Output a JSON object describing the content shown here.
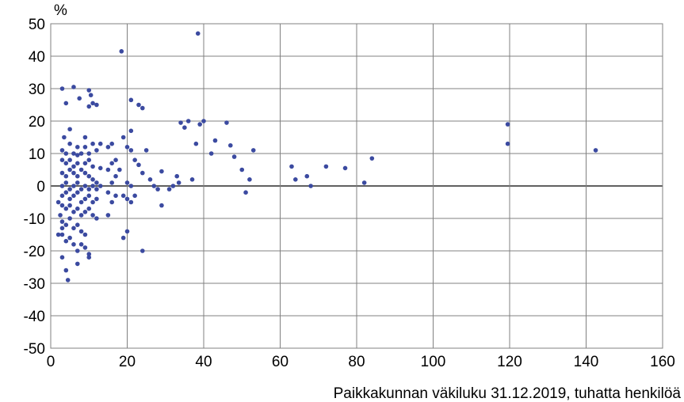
{
  "chart_data": {
    "type": "scatter",
    "title": "",
    "ylabel": "%",
    "xlabel": "Paikkakunnan väkiluku 31.12.2019, tuhatta henkilöä",
    "xlim": [
      0,
      160
    ],
    "ylim": [
      -50,
      50
    ],
    "x_ticks": [
      0,
      20,
      40,
      60,
      80,
      100,
      120,
      140,
      160
    ],
    "y_ticks": [
      50,
      40,
      30,
      20,
      10,
      0,
      -10,
      -20,
      -30,
      -40,
      -50
    ],
    "grid": true,
    "legend": "none",
    "marker_color": "#3b4aa0",
    "points": [
      [
        3,
        30
      ],
      [
        6,
        30.5
      ],
      [
        10,
        29.5
      ],
      [
        10.5,
        28
      ],
      [
        4,
        25.5
      ],
      [
        7.5,
        27
      ],
      [
        10,
        24.5
      ],
      [
        11,
        25.5
      ],
      [
        12,
        25
      ],
      [
        5,
        17.5
      ],
      [
        18.5,
        41.5
      ],
      [
        38.5,
        47
      ],
      [
        3.5,
        15
      ],
      [
        9,
        15
      ],
      [
        5,
        13
      ],
      [
        7,
        12
      ],
      [
        9,
        12
      ],
      [
        11,
        13
      ],
      [
        13,
        13
      ],
      [
        3,
        11
      ],
      [
        4,
        10
      ],
      [
        6,
        10
      ],
      [
        7,
        9.5
      ],
      [
        8,
        10
      ],
      [
        10,
        10
      ],
      [
        12,
        11
      ],
      [
        3,
        8
      ],
      [
        4,
        7
      ],
      [
        5,
        8
      ],
      [
        6,
        6
      ],
      [
        7,
        7
      ],
      [
        9,
        7
      ],
      [
        10,
        8
      ],
      [
        11,
        6
      ],
      [
        13,
        5.5
      ],
      [
        3,
        4
      ],
      [
        4,
        3
      ],
      [
        5,
        5
      ],
      [
        6,
        4
      ],
      [
        7,
        3
      ],
      [
        8,
        5
      ],
      [
        9,
        4
      ],
      [
        10,
        3
      ],
      [
        11,
        2
      ],
      [
        12,
        1
      ],
      [
        3,
        0
      ],
      [
        4,
        1
      ],
      [
        5,
        -1
      ],
      [
        6,
        0
      ],
      [
        7,
        1
      ],
      [
        8,
        -1
      ],
      [
        9,
        0
      ],
      [
        10,
        -1
      ],
      [
        11,
        0
      ],
      [
        12,
        -1
      ],
      [
        13,
        0
      ],
      [
        3,
        -3
      ],
      [
        4,
        -2
      ],
      [
        5,
        -4
      ],
      [
        6,
        -3
      ],
      [
        7,
        -2
      ],
      [
        8,
        -5
      ],
      [
        9,
        -4
      ],
      [
        10,
        -3
      ],
      [
        11,
        -5
      ],
      [
        12,
        -4
      ],
      [
        3,
        -6
      ],
      [
        4,
        -7
      ],
      [
        5,
        -6
      ],
      [
        6,
        -8
      ],
      [
        7,
        -7
      ],
      [
        8,
        -9
      ],
      [
        9,
        -8
      ],
      [
        10,
        -7
      ],
      [
        11,
        -9
      ],
      [
        12,
        -10
      ],
      [
        3,
        -11
      ],
      [
        4,
        -12
      ],
      [
        5,
        -10
      ],
      [
        6,
        -13
      ],
      [
        7,
        -12
      ],
      [
        8,
        -14
      ],
      [
        9,
        -15
      ],
      [
        2,
        -15
      ],
      [
        3,
        -15
      ],
      [
        4,
        -17
      ],
      [
        5,
        -16
      ],
      [
        6,
        -18
      ],
      [
        7,
        -20
      ],
      [
        8,
        -18
      ],
      [
        9,
        -19
      ],
      [
        10,
        -22
      ],
      [
        10,
        -21
      ],
      [
        3,
        -22
      ],
      [
        4,
        -26
      ],
      [
        4.5,
        -29
      ],
      [
        7,
        -24
      ],
      [
        2,
        -5
      ],
      [
        2.5,
        -9
      ],
      [
        3,
        -13
      ],
      [
        16,
        13
      ],
      [
        15,
        12
      ],
      [
        17,
        8
      ],
      [
        16,
        7
      ],
      [
        15,
        5
      ],
      [
        18,
        5
      ],
      [
        17,
        3
      ],
      [
        16,
        1
      ],
      [
        15,
        -2
      ],
      [
        17,
        -3
      ],
      [
        16,
        -5
      ],
      [
        15,
        -9
      ],
      [
        19,
        -3
      ],
      [
        20,
        -4
      ],
      [
        21,
        -5
      ],
      [
        22,
        -3
      ],
      [
        20,
        -14
      ],
      [
        19,
        -16
      ],
      [
        24,
        -20
      ],
      [
        19,
        15
      ],
      [
        20,
        12
      ],
      [
        21,
        11
      ],
      [
        22,
        8
      ],
      [
        21,
        17
      ],
      [
        21,
        26.5
      ],
      [
        23,
        25
      ],
      [
        24,
        24
      ],
      [
        23,
        6.5
      ],
      [
        24,
        4
      ],
      [
        20,
        1
      ],
      [
        21,
        0
      ],
      [
        25,
        11
      ],
      [
        26,
        2
      ],
      [
        27,
        0
      ],
      [
        28,
        -1
      ],
      [
        29,
        -6
      ],
      [
        29,
        4.5
      ],
      [
        31,
        -1
      ],
      [
        32,
        0
      ],
      [
        33,
        3
      ],
      [
        33.5,
        1
      ],
      [
        34,
        19.5
      ],
      [
        35,
        18
      ],
      [
        36,
        20
      ],
      [
        37,
        2
      ],
      [
        38,
        13
      ],
      [
        39,
        19
      ],
      [
        40,
        20
      ],
      [
        42,
        10
      ],
      [
        43,
        14
      ],
      [
        46,
        19.5
      ],
      [
        47,
        12.5
      ],
      [
        48,
        9
      ],
      [
        50,
        5
      ],
      [
        51,
        -2
      ],
      [
        52,
        2
      ],
      [
        53,
        11
      ],
      [
        63,
        6
      ],
      [
        64,
        2
      ],
      [
        67,
        3
      ],
      [
        68,
        0
      ],
      [
        72,
        6
      ],
      [
        77,
        5.5
      ],
      [
        82,
        1
      ],
      [
        84,
        8.5
      ],
      [
        119.5,
        19
      ],
      [
        119.5,
        13
      ],
      [
        142.5,
        11
      ]
    ]
  }
}
